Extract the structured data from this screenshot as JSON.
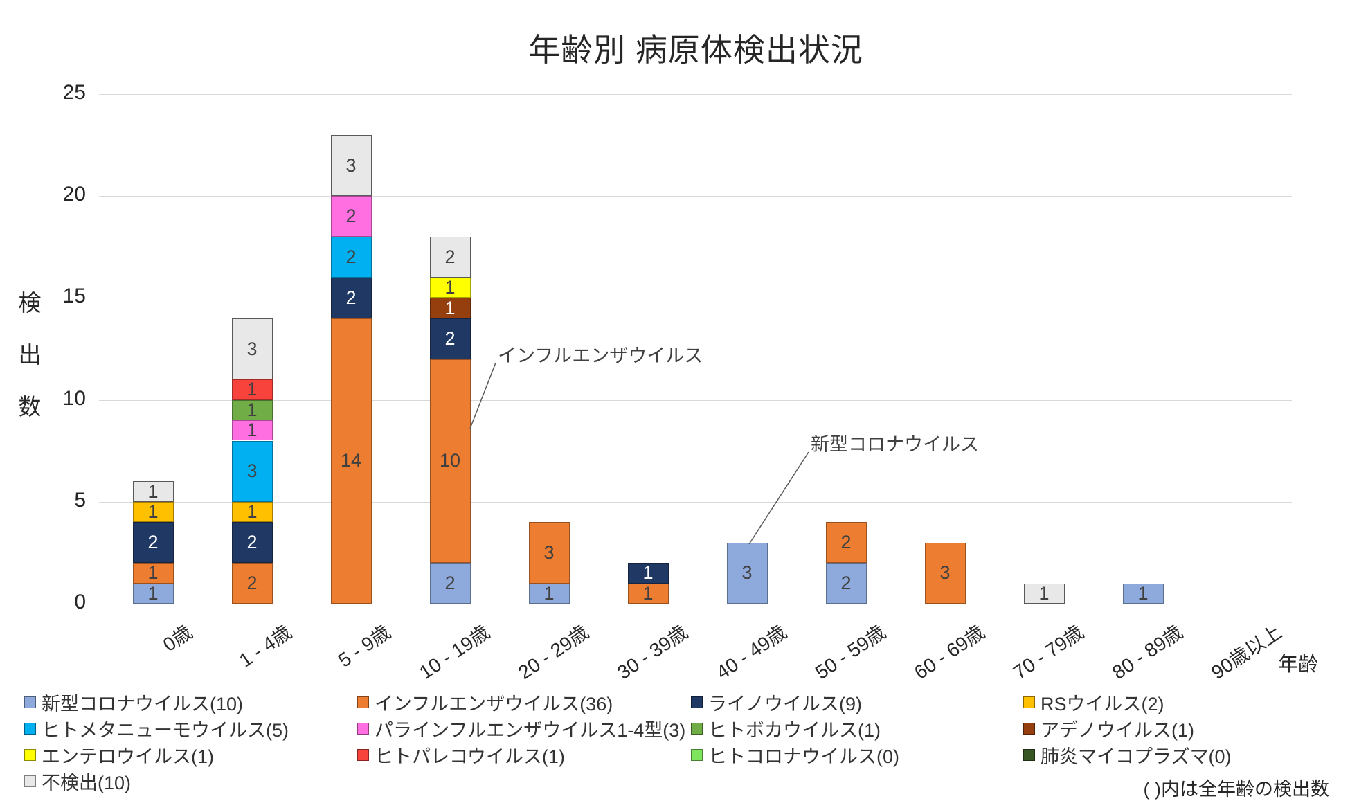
{
  "title": "年齢別 病原体検出状況",
  "y_axis": {
    "label": "検出数",
    "ticks": [
      0,
      5,
      10,
      15,
      20,
      25
    ],
    "max": 25
  },
  "x_axis": {
    "label": "年齢",
    "categories": [
      "0歳",
      "1 - 4歳",
      "5 - 9歳",
      "10 - 19歳",
      "20 - 29歳",
      "30 - 39歳",
      "40 - 49歳",
      "50 - 59歳",
      "60 - 69歳",
      "70 - 79歳",
      "80 - 89歳",
      "90歳以上"
    ]
  },
  "annotations": [
    {
      "text": "インフルエンザウイルス"
    },
    {
      "text": "新型コロナウイルス"
    }
  ],
  "note": "( )内は全年齢の検出数",
  "chart_data": {
    "type": "bar",
    "stacked": true,
    "title": "年齢別 病原体検出状況",
    "xlabel": "年齢",
    "ylabel": "検出数",
    "ylim": [
      0,
      25
    ],
    "grid": true,
    "legend_position": "bottom",
    "categories": [
      "0歳",
      "1 - 4歳",
      "5 - 9歳",
      "10 - 19歳",
      "20 - 29歳",
      "30 - 39歳",
      "40 - 49歳",
      "50 - 59歳",
      "60 - 69歳",
      "70 - 79歳",
      "80 - 89歳",
      "90歳以上"
    ],
    "series": [
      {
        "name": "新型コロナウイルス",
        "total": 10,
        "color": "#8EA9DB",
        "label_color": "#404040",
        "values": [
          1,
          0,
          0,
          2,
          1,
          0,
          3,
          2,
          0,
          0,
          1,
          0
        ]
      },
      {
        "name": "インフルエンザウイルス",
        "total": 36,
        "color": "#ED7D31",
        "label_color": "#404040",
        "values": [
          1,
          2,
          14,
          10,
          3,
          1,
          0,
          2,
          3,
          0,
          0,
          0
        ]
      },
      {
        "name": "ライノウイルス",
        "total": 9,
        "color": "#1F3864",
        "label_color": "#ffffff",
        "values": [
          2,
          2,
          2,
          2,
          0,
          1,
          0,
          0,
          0,
          0,
          0,
          0
        ]
      },
      {
        "name": "RSウイルス",
        "total": 2,
        "color": "#FFC000",
        "label_color": "#404040",
        "values": [
          1,
          1,
          0,
          0,
          0,
          0,
          0,
          0,
          0,
          0,
          0,
          0
        ]
      },
      {
        "name": "ヒトメタニューモウイルス",
        "total": 5,
        "color": "#00B0F0",
        "label_color": "#404040",
        "values": [
          0,
          3,
          2,
          0,
          0,
          0,
          0,
          0,
          0,
          0,
          0,
          0
        ]
      },
      {
        "name": "パラインフルエンザウイルス1-4型",
        "total": 3,
        "color": "#FF6FE1",
        "label_color": "#404040",
        "values": [
          0,
          1,
          2,
          0,
          0,
          0,
          0,
          0,
          0,
          0,
          0,
          0
        ]
      },
      {
        "name": "ヒトボカウイルス",
        "total": 1,
        "color": "#70AD47",
        "label_color": "#404040",
        "values": [
          0,
          1,
          0,
          0,
          0,
          0,
          0,
          0,
          0,
          0,
          0,
          0
        ]
      },
      {
        "name": "アデノウイルス",
        "total": 1,
        "color": "#963F0E",
        "label_color": "#ffffff",
        "values": [
          0,
          0,
          0,
          1,
          0,
          0,
          0,
          0,
          0,
          0,
          0,
          0
        ]
      },
      {
        "name": "エンテロウイルス",
        "total": 1,
        "color": "#FFFF00",
        "label_color": "#404040",
        "values": [
          0,
          0,
          0,
          1,
          0,
          0,
          0,
          0,
          0,
          0,
          0,
          0
        ]
      },
      {
        "name": "ヒトパレコウイルス",
        "total": 1,
        "color": "#F8423C",
        "label_color": "#404040",
        "values": [
          0,
          1,
          0,
          0,
          0,
          0,
          0,
          0,
          0,
          0,
          0,
          0
        ]
      },
      {
        "name": "ヒトコロナウイルス",
        "total": 0,
        "color": "#80E55E",
        "label_color": "#404040",
        "values": [
          0,
          0,
          0,
          0,
          0,
          0,
          0,
          0,
          0,
          0,
          0,
          0
        ]
      },
      {
        "name": "肺炎マイコプラズマ",
        "total": 0,
        "color": "#375623",
        "label_color": "#ffffff",
        "values": [
          0,
          0,
          0,
          0,
          0,
          0,
          0,
          0,
          0,
          0,
          0,
          0
        ]
      },
      {
        "name": "不検出",
        "total": 10,
        "color": "#E8E8E8",
        "label_color": "#404040",
        "values": [
          1,
          3,
          3,
          2,
          0,
          0,
          0,
          0,
          0,
          1,
          0,
          0
        ]
      }
    ]
  }
}
